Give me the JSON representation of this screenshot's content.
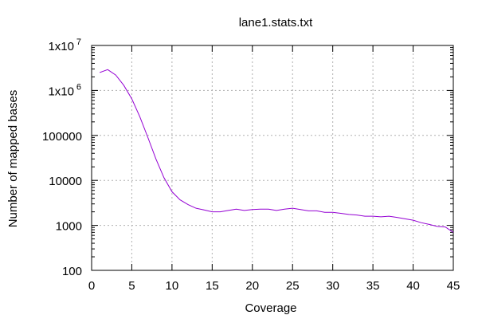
{
  "chart_data": {
    "type": "line",
    "title": "lane1.stats.txt",
    "xlabel": "Coverage",
    "ylabel": "Number of mapped bases",
    "xlim": [
      0,
      45
    ],
    "ylim": [
      100,
      10000000
    ],
    "yscale": "log",
    "grid": true,
    "legend": "none",
    "x_ticks": [
      {
        "value": 0,
        "label": "0"
      },
      {
        "value": 5,
        "label": "5"
      },
      {
        "value": 10,
        "label": "10"
      },
      {
        "value": 15,
        "label": "15"
      },
      {
        "value": 20,
        "label": "20"
      },
      {
        "value": 25,
        "label": "25"
      },
      {
        "value": 30,
        "label": "30"
      },
      {
        "value": 35,
        "label": "35"
      },
      {
        "value": 40,
        "label": "40"
      },
      {
        "value": 45,
        "label": "45"
      }
    ],
    "y_ticks": [
      {
        "value": 100,
        "label": "100"
      },
      {
        "value": 1000,
        "label": "1000"
      },
      {
        "value": 10000,
        "label": "10000"
      },
      {
        "value": 100000,
        "label": "100000"
      },
      {
        "value": 1000000,
        "label": "1x10",
        "exp": "6"
      },
      {
        "value": 10000000,
        "label": "1x10",
        "exp": "7"
      }
    ],
    "series": [
      {
        "color": "#9400d3",
        "points": [
          [
            1,
            2500000
          ],
          [
            2,
            2900000
          ],
          [
            3,
            2200000
          ],
          [
            4,
            1300000
          ],
          [
            5,
            650000
          ],
          [
            6,
            260000
          ],
          [
            7,
            90000
          ],
          [
            8,
            30000
          ],
          [
            9,
            11500
          ],
          [
            10,
            5600
          ],
          [
            11,
            3700
          ],
          [
            12,
            2900
          ],
          [
            13,
            2400
          ],
          [
            14,
            2200
          ],
          [
            15,
            2000
          ],
          [
            16,
            2000
          ],
          [
            17,
            2150
          ],
          [
            18,
            2300
          ],
          [
            19,
            2150
          ],
          [
            20,
            2250
          ],
          [
            21,
            2300
          ],
          [
            22,
            2300
          ],
          [
            23,
            2150
          ],
          [
            24,
            2300
          ],
          [
            25,
            2400
          ],
          [
            26,
            2250
          ],
          [
            27,
            2100
          ],
          [
            28,
            2100
          ],
          [
            29,
            1950
          ],
          [
            30,
            1950
          ],
          [
            31,
            1850
          ],
          [
            32,
            1750
          ],
          [
            33,
            1700
          ],
          [
            34,
            1600
          ],
          [
            35,
            1600
          ],
          [
            36,
            1550
          ],
          [
            37,
            1600
          ],
          [
            38,
            1500
          ],
          [
            39,
            1400
          ],
          [
            40,
            1300
          ],
          [
            41,
            1150
          ],
          [
            42,
            1050
          ],
          [
            43,
            950
          ],
          [
            44,
            920
          ],
          [
            45,
            700
          ]
        ]
      }
    ]
  }
}
